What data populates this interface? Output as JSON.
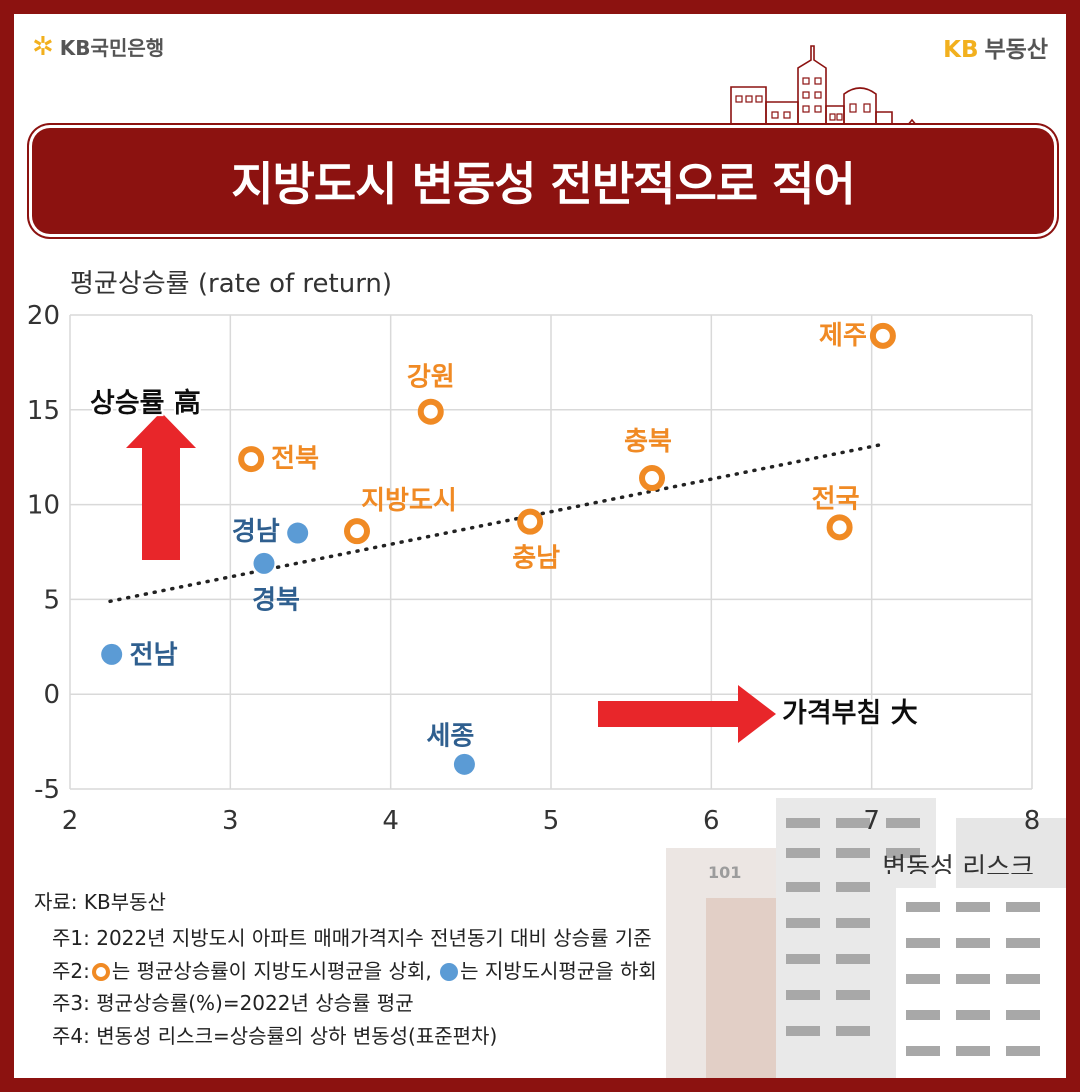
{
  "header": {
    "bank_name": "KB국민은행",
    "brand_kb": "KB",
    "brand_name": "부동산"
  },
  "title": "지방도시 변동성 전반적으로 적어",
  "colors": {
    "frame": "#8c1210",
    "above_avg": "#f08a24",
    "below_avg": "#5b9bd5",
    "arrow": "#e8262a",
    "grid": "#d9d9d9"
  },
  "chart_data": {
    "type": "scatter",
    "ylabel": "평균상승률 (rate of return)",
    "xlabel": "변동성 리스크",
    "xlim": [
      2,
      8
    ],
    "ylim": [
      -5,
      20
    ],
    "x_ticks": [
      2,
      3,
      4,
      5,
      6,
      7,
      8
    ],
    "y_ticks": [
      -5,
      0,
      5,
      10,
      15,
      20
    ],
    "points": [
      {
        "label": "제주",
        "x": 7.07,
        "y": 18.9,
        "group": "above"
      },
      {
        "label": "강원",
        "x": 4.25,
        "y": 14.9,
        "group": "above"
      },
      {
        "label": "전북",
        "x": 3.13,
        "y": 12.4,
        "group": "above"
      },
      {
        "label": "충북",
        "x": 5.63,
        "y": 11.4,
        "group": "above"
      },
      {
        "label": "충남",
        "x": 4.87,
        "y": 9.1,
        "group": "above"
      },
      {
        "label": "지방도시",
        "x": 3.79,
        "y": 8.6,
        "group": "above"
      },
      {
        "label": "전국",
        "x": 6.8,
        "y": 8.8,
        "group": "above"
      },
      {
        "label": "경남",
        "x": 3.42,
        "y": 8.5,
        "group": "below"
      },
      {
        "label": "경북",
        "x": 3.21,
        "y": 6.9,
        "group": "below"
      },
      {
        "label": "전남",
        "x": 2.26,
        "y": 2.1,
        "group": "below"
      },
      {
        "label": "세종",
        "x": 4.46,
        "y": -3.7,
        "group": "below"
      }
    ],
    "trendline": {
      "x": [
        2.25,
        7.08
      ],
      "y": [
        4.9,
        13.2
      ]
    },
    "annotations": {
      "up": "상승률 高",
      "right": "가격부침 大"
    }
  },
  "building_number": "101",
  "notes": {
    "source": "자료: KB부동산",
    "n1": "주1: 2022년 지방도시 아파트 매매가격지수 전년동기 대비 상승률 기준",
    "n2_prefix": "주2:",
    "n2_mid": "는 평균상승률이 지방도시평균을 상회,",
    "n2_end": "는 지방도시평균을 하회",
    "n3": "주3: 평균상승률(%)=2022년 상승률 평균",
    "n4": "주4: 변동성 리스크=상승률의 상하 변동성(표준편차)"
  }
}
